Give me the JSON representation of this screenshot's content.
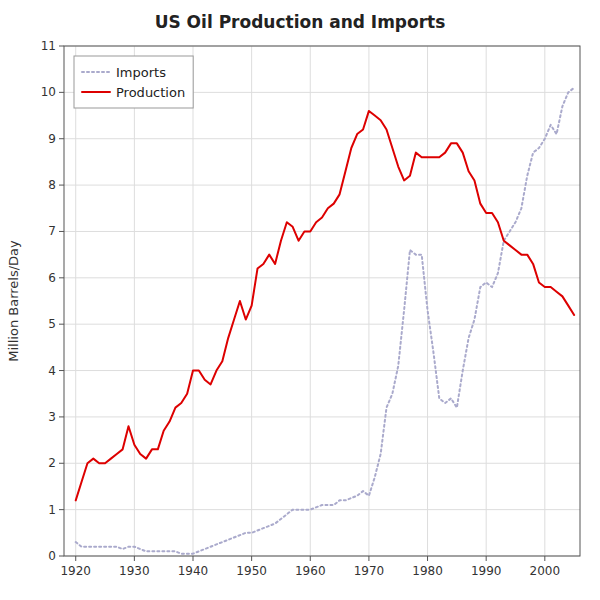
{
  "chart_data": {
    "type": "line",
    "title": "US Oil Production and Imports",
    "ylabel": "Million Barrels/Day",
    "x": [
      1920,
      1921,
      1922,
      1923,
      1924,
      1925,
      1926,
      1927,
      1928,
      1929,
      1930,
      1931,
      1932,
      1933,
      1934,
      1935,
      1936,
      1937,
      1938,
      1939,
      1940,
      1941,
      1942,
      1943,
      1944,
      1945,
      1946,
      1947,
      1948,
      1949,
      1950,
      1951,
      1952,
      1953,
      1954,
      1955,
      1956,
      1957,
      1958,
      1959,
      1960,
      1961,
      1962,
      1963,
      1964,
      1965,
      1966,
      1967,
      1968,
      1969,
      1970,
      1971,
      1972,
      1973,
      1974,
      1975,
      1976,
      1977,
      1978,
      1979,
      1980,
      1981,
      1982,
      1983,
      1984,
      1985,
      1986,
      1987,
      1988,
      1989,
      1990,
      1991,
      1992,
      1993,
      1994,
      1995,
      1996,
      1997,
      1998,
      1999,
      2000,
      2001,
      2002,
      2003,
      2004,
      2005
    ],
    "series": [
      {
        "name": "Imports",
        "color": "#aaaacc",
        "line_style": "dotted",
        "values": [
          0.3,
          0.2,
          0.2,
          0.2,
          0.2,
          0.2,
          0.2,
          0.2,
          0.15,
          0.2,
          0.2,
          0.15,
          0.1,
          0.1,
          0.1,
          0.1,
          0.1,
          0.1,
          0.05,
          0.05,
          0.05,
          0.1,
          0.15,
          0.2,
          0.25,
          0.3,
          0.35,
          0.4,
          0.45,
          0.5,
          0.5,
          0.55,
          0.6,
          0.65,
          0.7,
          0.8,
          0.9,
          1.0,
          1.0,
          1.0,
          1.0,
          1.05,
          1.1,
          1.1,
          1.1,
          1.2,
          1.2,
          1.25,
          1.3,
          1.4,
          1.3,
          1.7,
          2.2,
          3.2,
          3.5,
          4.1,
          5.3,
          6.6,
          6.5,
          6.5,
          5.3,
          4.4,
          3.4,
          3.3,
          3.4,
          3.2,
          4.0,
          4.7,
          5.1,
          5.8,
          5.9,
          5.8,
          6.1,
          6.8,
          7.0,
          7.2,
          7.5,
          8.2,
          8.7,
          8.8,
          9.0,
          9.3,
          9.1,
          9.7,
          10.0,
          10.1
        ]
      },
      {
        "name": "Production",
        "color": "#dd0000",
        "line_style": "solid",
        "values": [
          1.2,
          1.6,
          2.0,
          2.1,
          2.0,
          2.0,
          2.1,
          2.2,
          2.3,
          2.8,
          2.4,
          2.2,
          2.1,
          2.3,
          2.3,
          2.7,
          2.9,
          3.2,
          3.3,
          3.5,
          4.0,
          4.0,
          3.8,
          3.7,
          4.0,
          4.2,
          4.7,
          5.1,
          5.5,
          5.1,
          5.4,
          6.2,
          6.3,
          6.5,
          6.3,
          6.8,
          7.2,
          7.1,
          6.8,
          7.0,
          7.0,
          7.2,
          7.3,
          7.5,
          7.6,
          7.8,
          8.3,
          8.8,
          9.1,
          9.2,
          9.6,
          9.5,
          9.4,
          9.2,
          8.8,
          8.4,
          8.1,
          8.2,
          8.7,
          8.6,
          8.6,
          8.6,
          8.6,
          8.7,
          8.9,
          8.9,
          8.7,
          8.3,
          8.1,
          7.6,
          7.4,
          7.4,
          7.2,
          6.8,
          6.7,
          6.6,
          6.5,
          6.5,
          6.3,
          5.9,
          5.8,
          5.8,
          5.7,
          5.6,
          5.4,
          5.2
        ]
      }
    ],
    "xlim": [
      1918,
      2006
    ],
    "ylim": [
      0,
      11
    ],
    "xticks": [
      1920,
      1930,
      1940,
      1950,
      1960,
      1970,
      1980,
      1990,
      2000
    ],
    "yticks": [
      0,
      1,
      2,
      3,
      4,
      5,
      6,
      7,
      8,
      9,
      10,
      11
    ],
    "grid": true,
    "legend": "upper left"
  }
}
